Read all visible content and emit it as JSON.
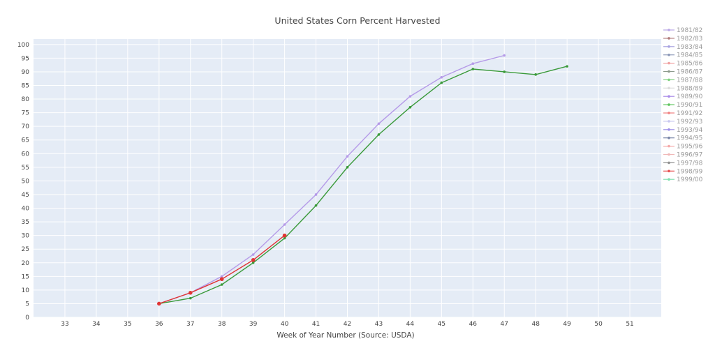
{
  "chart_data": {
    "type": "line",
    "title": "United States Corn Percent Harvested",
    "xlabel": "Week of Year Number     (Source: USDA)",
    "ylabel": "",
    "xlim": [
      32,
      52
    ],
    "ylim": [
      0,
      102
    ],
    "x_ticks": [
      33,
      34,
      35,
      36,
      37,
      38,
      39,
      40,
      41,
      42,
      43,
      44,
      45,
      46,
      47,
      48,
      49,
      50,
      51
    ],
    "y_ticks": [
      0,
      5,
      10,
      15,
      20,
      25,
      30,
      35,
      40,
      45,
      50,
      55,
      60,
      65,
      70,
      75,
      80,
      85,
      90,
      95,
      100
    ],
    "grid": true,
    "legend_placement": "right",
    "series": [
      {
        "name": "1981/82",
        "color": "#b9a7e6",
        "x": [],
        "y": []
      },
      {
        "name": "1982/83",
        "color": "#b07a7a",
        "x": [],
        "y": []
      },
      {
        "name": "1983/84",
        "color": "#a7a2e0",
        "x": [],
        "y": []
      },
      {
        "name": "1984/85",
        "color": "#8d99b8",
        "x": [],
        "y": []
      },
      {
        "name": "1985/86",
        "color": "#f0a0a0",
        "x": [],
        "y": []
      },
      {
        "name": "1986/87",
        "color": "#8c9a8c",
        "x": [],
        "y": []
      },
      {
        "name": "1987/88",
        "color": "#7fd07f",
        "x": [],
        "y": []
      },
      {
        "name": "1988/89",
        "color": "#dcdcdc",
        "x": [],
        "y": []
      },
      {
        "name": "1989/90",
        "color": "#a98be8",
        "x": [],
        "y": []
      },
      {
        "name": "1990/91",
        "color": "#5fc45f",
        "x": [],
        "y": []
      },
      {
        "name": "1991/92",
        "color": "#f08080",
        "x": [],
        "y": []
      },
      {
        "name": "1992/93",
        "color": "#c8c8f0",
        "x": [],
        "y": []
      },
      {
        "name": "1993/94",
        "color": "#9d8fe8",
        "x": [],
        "y": []
      },
      {
        "name": "1994/95",
        "color": "#7a86a8",
        "x": [],
        "y": []
      },
      {
        "name": "1995/96",
        "color": "#f4a8a8",
        "x": [],
        "y": []
      },
      {
        "name": "1996/97",
        "color": "#f0b8b8",
        "x": [],
        "y": []
      },
      {
        "name": "1997/98",
        "color": "#909090",
        "x": [],
        "y": []
      },
      {
        "name": "1998/99",
        "color": "#e85050",
        "x": [],
        "y": []
      },
      {
        "name": "1999/00",
        "color": "#80e0b0",
        "x": [],
        "y": []
      },
      {
        "name": "",
        "color": "#b59ae8",
        "legend": false,
        "x": [
          36,
          37,
          38,
          39,
          40,
          41,
          42,
          43,
          44,
          45,
          46,
          47
        ],
        "y": [
          5,
          9,
          15,
          23,
          34,
          45,
          59,
          71,
          81,
          88,
          93,
          96
        ]
      },
      {
        "name": "",
        "color": "#3a9a3a",
        "legend": false,
        "x": [
          36,
          37,
          38,
          39,
          40,
          41,
          42,
          43,
          44,
          45,
          46,
          47,
          48,
          49
        ],
        "y": [
          5,
          7,
          12,
          20,
          29,
          41,
          55,
          67,
          77,
          86,
          91,
          90,
          89,
          92
        ]
      },
      {
        "name": "",
        "color": "#e03535",
        "legend": false,
        "marker_size": 2.8,
        "x": [
          36,
          37,
          38,
          39,
          40
        ],
        "y": [
          5,
          9,
          14,
          21,
          30
        ]
      }
    ]
  }
}
